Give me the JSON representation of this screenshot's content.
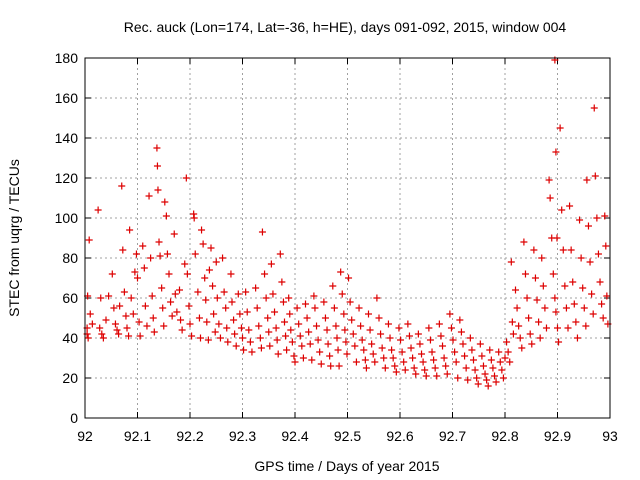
{
  "chart_data": {
    "type": "scatter",
    "title": "Rec. auck (Lon=174, Lat=-36, h=HE), days 091-092, 2015, window 004",
    "xlabel": "GPS time / Days of year 2015",
    "ylabel": "STEC from uqrg / TECUs",
    "xlim": [
      92,
      93
    ],
    "ylim": [
      0,
      180
    ],
    "xticks": [
      92,
      92.1,
      92.2,
      92.3,
      92.4,
      92.5,
      92.6,
      92.7,
      92.8,
      92.9,
      93
    ],
    "xtick_labels": [
      "92",
      "92.1",
      "92.2",
      "92.3",
      "92.4",
      "92.5",
      "92.6",
      "92.7",
      "92.8",
      "92.9",
      "93"
    ],
    "yticks": [
      0,
      20,
      40,
      60,
      80,
      100,
      120,
      140,
      160,
      180
    ],
    "ytick_labels": [
      "0",
      "20",
      "40",
      "60",
      "80",
      "100",
      "120",
      "140",
      "160",
      "180"
    ],
    "grid": true,
    "legend": "none",
    "marker": "plus",
    "color": "#dd0000",
    "points": [
      [
        92.005,
        61
      ],
      [
        92.008,
        89
      ],
      [
        92.004,
        45
      ],
      [
        92.004,
        42
      ],
      [
        92.006,
        40
      ],
      [
        92.01,
        52
      ],
      [
        92.014,
        47
      ],
      [
        92.025,
        104
      ],
      [
        92.03,
        60
      ],
      [
        92.028,
        45
      ],
      [
        92.032,
        42
      ],
      [
        92.035,
        40
      ],
      [
        92.04,
        49
      ],
      [
        92.045,
        61
      ],
      [
        92.052,
        72
      ],
      [
        92.055,
        55
      ],
      [
        92.058,
        47
      ],
      [
        92.061,
        44
      ],
      [
        92.064,
        42
      ],
      [
        92.066,
        56
      ],
      [
        92.07,
        116
      ],
      [
        92.072,
        84
      ],
      [
        92.075,
        63
      ],
      [
        92.078,
        51
      ],
      [
        92.08,
        45
      ],
      [
        92.083,
        41
      ],
      [
        92.085,
        94
      ],
      [
        92.088,
        60
      ],
      [
        92.092,
        52
      ],
      [
        92.095,
        73
      ],
      [
        92.098,
        82
      ],
      [
        92.1,
        70
      ],
      [
        92.103,
        48
      ],
      [
        92.105,
        41
      ],
      [
        92.11,
        86
      ],
      [
        92.113,
        75
      ],
      [
        92.115,
        56
      ],
      [
        92.118,
        46
      ],
      [
        92.122,
        111
      ],
      [
        92.125,
        80
      ],
      [
        92.128,
        61
      ],
      [
        92.13,
        50
      ],
      [
        92.132,
        43
      ],
      [
        92.137,
        135
      ],
      [
        92.138,
        126
      ],
      [
        92.139,
        114
      ],
      [
        92.141,
        88
      ],
      [
        92.143,
        81
      ],
      [
        92.146,
        65
      ],
      [
        92.148,
        55
      ],
      [
        92.15,
        46
      ],
      [
        92.155,
        101
      ],
      [
        92.152,
        108
      ],
      [
        92.157,
        82
      ],
      [
        92.16,
        72
      ],
      [
        92.163,
        58
      ],
      [
        92.166,
        51
      ],
      [
        92.17,
        92
      ],
      [
        92.172,
        62
      ],
      [
        92.175,
        53
      ],
      [
        92.18,
        64
      ],
      [
        92.182,
        49
      ],
      [
        92.185,
        44
      ],
      [
        92.19,
        77
      ],
      [
        92.193,
        120
      ],
      [
        92.195,
        72
      ],
      [
        92.198,
        56
      ],
      [
        92.2,
        47
      ],
      [
        92.203,
        41
      ],
      [
        92.207,
        102
      ],
      [
        92.208,
        100
      ],
      [
        92.21,
        82
      ],
      [
        92.215,
        63
      ],
      [
        92.218,
        50
      ],
      [
        92.22,
        40
      ],
      [
        92.222,
        94
      ],
      [
        92.225,
        87
      ],
      [
        92.228,
        70
      ],
      [
        92.23,
        59
      ],
      [
        92.232,
        48
      ],
      [
        92.235,
        39
      ],
      [
        92.237,
        74
      ],
      [
        92.24,
        85
      ],
      [
        92.243,
        66
      ],
      [
        92.245,
        52
      ],
      [
        92.248,
        43
      ],
      [
        92.25,
        78
      ],
      [
        92.252,
        60
      ],
      [
        92.255,
        47
      ],
      [
        92.258,
        40
      ],
      [
        92.262,
        80
      ],
      [
        92.265,
        63
      ],
      [
        92.268,
        55
      ],
      [
        92.27,
        45
      ],
      [
        92.272,
        38
      ],
      [
        92.278,
        72
      ],
      [
        92.28,
        58
      ],
      [
        92.283,
        49
      ],
      [
        92.285,
        42
      ],
      [
        92.288,
        36
      ],
      [
        92.292,
        62
      ],
      [
        92.295,
        52
      ],
      [
        92.298,
        45
      ],
      [
        92.3,
        40
      ],
      [
        92.302,
        34
      ],
      [
        92.306,
        63
      ],
      [
        92.309,
        53
      ],
      [
        92.312,
        44
      ],
      [
        92.315,
        38
      ],
      [
        92.318,
        33
      ],
      [
        92.325,
        65
      ],
      [
        92.328,
        55
      ],
      [
        92.331,
        46
      ],
      [
        92.334,
        40
      ],
      [
        92.336,
        35
      ],
      [
        92.338,
        93
      ],
      [
        92.342,
        72
      ],
      [
        92.345,
        60
      ],
      [
        92.348,
        50
      ],
      [
        92.35,
        43
      ],
      [
        92.352,
        36
      ],
      [
        92.355,
        77
      ],
      [
        92.358,
        62
      ],
      [
        92.361,
        53
      ],
      [
        92.364,
        45
      ],
      [
        92.366,
        39
      ],
      [
        92.368,
        32
      ],
      [
        92.372,
        82
      ],
      [
        92.375,
        68
      ],
      [
        92.378,
        58
      ],
      [
        92.38,
        48
      ],
      [
        92.382,
        41
      ],
      [
        92.384,
        34
      ],
      [
        92.388,
        60
      ],
      [
        92.39,
        52
      ],
      [
        92.392,
        44
      ],
      [
        92.395,
        38
      ],
      [
        92.398,
        31
      ],
      [
        92.4,
        28
      ],
      [
        92.404,
        55
      ],
      [
        92.407,
        47
      ],
      [
        92.41,
        41
      ],
      [
        92.413,
        36
      ],
      [
        92.416,
        30
      ],
      [
        92.42,
        57
      ],
      [
        92.423,
        50
      ],
      [
        92.426,
        43
      ],
      [
        92.429,
        37
      ],
      [
        92.432,
        29
      ],
      [
        92.436,
        61
      ],
      [
        92.438,
        55
      ],
      [
        92.441,
        46
      ],
      [
        92.444,
        39
      ],
      [
        92.447,
        33
      ],
      [
        92.45,
        27
      ],
      [
        92.455,
        58
      ],
      [
        92.458,
        50
      ],
      [
        92.461,
        44
      ],
      [
        92.463,
        37
      ],
      [
        92.466,
        31
      ],
      [
        92.468,
        26
      ],
      [
        92.472,
        66
      ],
      [
        92.475,
        55
      ],
      [
        92.478,
        46
      ],
      [
        92.48,
        40
      ],
      [
        92.482,
        34
      ],
      [
        92.484,
        26
      ],
      [
        92.487,
        73
      ],
      [
        92.49,
        62
      ],
      [
        92.493,
        52
      ],
      [
        92.495,
        44
      ],
      [
        92.497,
        38
      ],
      [
        92.499,
        32
      ],
      [
        92.502,
        70
      ],
      [
        92.505,
        58
      ],
      [
        92.508,
        49
      ],
      [
        92.511,
        42
      ],
      [
        92.514,
        36
      ],
      [
        92.517,
        28
      ],
      [
        92.522,
        55
      ],
      [
        92.525,
        46
      ],
      [
        92.528,
        39
      ],
      [
        92.531,
        34
      ],
      [
        92.534,
        29
      ],
      [
        92.536,
        25
      ],
      [
        92.54,
        52
      ],
      [
        92.543,
        44
      ],
      [
        92.546,
        37
      ],
      [
        92.549,
        32
      ],
      [
        92.552,
        28
      ],
      [
        92.556,
        60
      ],
      [
        92.56,
        50
      ],
      [
        92.563,
        42
      ],
      [
        92.566,
        35
      ],
      [
        92.569,
        30
      ],
      [
        92.572,
        25
      ],
      [
        92.578,
        47
      ],
      [
        92.581,
        40
      ],
      [
        92.584,
        34
      ],
      [
        92.587,
        30
      ],
      [
        92.59,
        26
      ],
      [
        92.593,
        23
      ],
      [
        92.598,
        45
      ],
      [
        92.601,
        39
      ],
      [
        92.604,
        33
      ],
      [
        92.607,
        28
      ],
      [
        92.61,
        24
      ],
      [
        92.615,
        47
      ],
      [
        92.618,
        41
      ],
      [
        92.621,
        35
      ],
      [
        92.624,
        30
      ],
      [
        92.627,
        25
      ],
      [
        92.63,
        22
      ],
      [
        92.635,
        42
      ],
      [
        92.638,
        37
      ],
      [
        92.641,
        32
      ],
      [
        92.644,
        28
      ],
      [
        92.647,
        24
      ],
      [
        92.65,
        21
      ],
      [
        92.655,
        45
      ],
      [
        92.658,
        39
      ],
      [
        92.661,
        33
      ],
      [
        92.664,
        29
      ],
      [
        92.667,
        25
      ],
      [
        92.67,
        21
      ],
      [
        92.675,
        47
      ],
      [
        92.678,
        41
      ],
      [
        92.681,
        36
      ],
      [
        92.684,
        30
      ],
      [
        92.687,
        26
      ],
      [
        92.69,
        22
      ],
      [
        92.695,
        52
      ],
      [
        92.698,
        45
      ],
      [
        92.701,
        39
      ],
      [
        92.704,
        33
      ],
      [
        92.707,
        28
      ],
      [
        92.71,
        20
      ],
      [
        92.714,
        49
      ],
      [
        92.717,
        43
      ],
      [
        92.72,
        37
      ],
      [
        92.723,
        31
      ],
      [
        92.726,
        25
      ],
      [
        92.729,
        19
      ],
      [
        92.734,
        40
      ],
      [
        92.737,
        34
      ],
      [
        92.74,
        29
      ],
      [
        92.743,
        24
      ],
      [
        92.746,
        20
      ],
      [
        92.749,
        17
      ],
      [
        92.753,
        37
      ],
      [
        92.756,
        31
      ],
      [
        92.759,
        26
      ],
      [
        92.762,
        22
      ],
      [
        92.765,
        19
      ],
      [
        92.768,
        16
      ],
      [
        92.771,
        34
      ],
      [
        92.774,
        29
      ],
      [
        92.777,
        25
      ],
      [
        92.78,
        21
      ],
      [
        92.783,
        18
      ],
      [
        92.788,
        33
      ],
      [
        92.791,
        28
      ],
      [
        92.794,
        24
      ],
      [
        92.797,
        20
      ],
      [
        92.8,
        30
      ],
      [
        92.803,
        38
      ],
      [
        92.806,
        33
      ],
      [
        92.809,
        28
      ],
      [
        92.812,
        78
      ],
      [
        92.814,
        48
      ],
      [
        92.816,
        42
      ],
      [
        92.82,
        64
      ],
      [
        92.823,
        55
      ],
      [
        92.826,
        46
      ],
      [
        92.829,
        40
      ],
      [
        92.832,
        35
      ],
      [
        92.836,
        88
      ],
      [
        92.839,
        72
      ],
      [
        92.842,
        60
      ],
      [
        92.845,
        50
      ],
      [
        92.848,
        42
      ],
      [
        92.851,
        37
      ],
      [
        92.855,
        84
      ],
      [
        92.858,
        70
      ],
      [
        92.861,
        59
      ],
      [
        92.864,
        48
      ],
      [
        92.867,
        40
      ],
      [
        92.87,
        80
      ],
      [
        92.873,
        66
      ],
      [
        92.876,
        55
      ],
      [
        92.879,
        45
      ],
      [
        92.884,
        119
      ],
      [
        92.886,
        110
      ],
      [
        92.889,
        90
      ],
      [
        92.892,
        72
      ],
      [
        92.895,
        60
      ],
      [
        92.897,
        53
      ],
      [
        92.9,
        45
      ],
      [
        92.902,
        38
      ],
      [
        92.895,
        179
      ],
      [
        92.897,
        133
      ],
      [
        92.899,
        90
      ],
      [
        92.905,
        145
      ],
      [
        92.908,
        104
      ],
      [
        92.911,
        84
      ],
      [
        92.914,
        66
      ],
      [
        92.917,
        55
      ],
      [
        92.92,
        45
      ],
      [
        92.923,
        106
      ],
      [
        92.926,
        84
      ],
      [
        92.929,
        68
      ],
      [
        92.932,
        57
      ],
      [
        92.935,
        48
      ],
      [
        92.938,
        40
      ],
      [
        92.942,
        99
      ],
      [
        92.945,
        80
      ],
      [
        92.948,
        65
      ],
      [
        92.951,
        55
      ],
      [
        92.954,
        46
      ],
      [
        92.956,
        119
      ],
      [
        92.959,
        96
      ],
      [
        92.962,
        78
      ],
      [
        92.965,
        62
      ],
      [
        92.968,
        52
      ],
      [
        92.97,
        155
      ],
      [
        92.972,
        121
      ],
      [
        92.975,
        100
      ],
      [
        92.978,
        82
      ],
      [
        92.981,
        68
      ],
      [
        92.984,
        57
      ],
      [
        92.987,
        50
      ],
      [
        92.99,
        101
      ],
      [
        92.992,
        86
      ],
      [
        92.994,
        61
      ],
      [
        92.996,
        47
      ]
    ]
  }
}
